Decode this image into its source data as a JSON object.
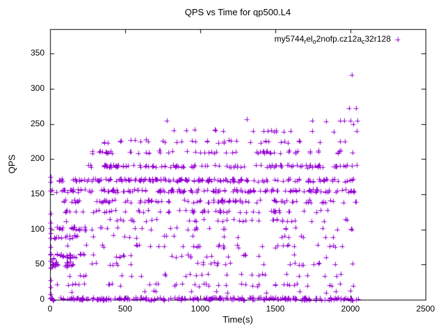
{
  "style": {
    "marker_color": "#9400d3",
    "axis_color": "#000000",
    "background": "#ffffff",
    "text_color": "#000000"
  },
  "legend": {
    "position": "top-right-inside",
    "entries": [
      {
        "label": "my5744_rel_o2nofp.cz12a_c32r128",
        "marker": "plus",
        "color": "#9400d3",
        "segments": [
          {
            "t": "my5744"
          },
          {
            "t": "r",
            "sub": true
          },
          {
            "t": "el"
          },
          {
            "t": "o",
            "sub": true
          },
          {
            "t": "2nofp.cz12a"
          },
          {
            "t": "c",
            "sub": true
          },
          {
            "t": "32r128"
          }
        ]
      }
    ]
  },
  "chart_data": {
    "type": "scatter",
    "title": "QPS vs Time for qp500.L4",
    "xlabel": "Time(s)",
    "ylabel": "QPS",
    "xlim": [
      0,
      2500
    ],
    "ylim": [
      0,
      385
    ],
    "xticks": [
      0,
      500,
      1000,
      1500,
      2000,
      2500
    ],
    "yticks": [
      0,
      50,
      100,
      150,
      200,
      250,
      300,
      350
    ],
    "grid": false,
    "note": "Dense scatter of QPS samples vs time; points lie on horizontal bands. Each band lists its QPS level y, time range x0..x1 (seconds) and approximate visible point count n, as read from the plot.",
    "series": [
      {
        "name": "my5744_rel_o2nofp.cz12a_c32r128",
        "marker": "plus",
        "color": "#9400d3",
        "bands": [
          {
            "y": 1,
            "x0": 0,
            "x1": 2050,
            "n": 240
          },
          {
            "y": 11,
            "x0": 20,
            "x1": 2030,
            "n": 12
          },
          {
            "y": 21,
            "x0": 20,
            "x1": 2040,
            "n": 40
          },
          {
            "y": 35,
            "x0": 25,
            "x1": 2040,
            "n": 26
          },
          {
            "y": 50,
            "x0": 5,
            "x1": 140,
            "n": 22,
            "j": 4
          },
          {
            "y": 51,
            "x0": 140,
            "x1": 2040,
            "n": 30
          },
          {
            "y": 62,
            "x0": 5,
            "x1": 230,
            "n": 26,
            "j": 4
          },
          {
            "y": 62,
            "x0": 230,
            "x1": 2040,
            "n": 22
          },
          {
            "y": 76,
            "x0": 10,
            "x1": 2040,
            "n": 34
          },
          {
            "y": 89,
            "x0": 10,
            "x1": 180,
            "n": 14,
            "j": 3
          },
          {
            "y": 90,
            "x0": 180,
            "x1": 2040,
            "n": 18
          },
          {
            "y": 101,
            "x0": 40,
            "x1": 240,
            "n": 18,
            "j": 3
          },
          {
            "y": 101,
            "x0": 240,
            "x1": 2040,
            "n": 24
          },
          {
            "y": 113,
            "x0": 80,
            "x1": 2040,
            "n": 38
          },
          {
            "y": 126,
            "x0": 80,
            "x1": 2040,
            "n": 60
          },
          {
            "y": 140,
            "x0": 90,
            "x1": 2050,
            "n": 92
          },
          {
            "y": 155,
            "x0": 5,
            "x1": 2050,
            "n": 155
          },
          {
            "y": 170,
            "x0": 55,
            "x1": 2050,
            "n": 160
          },
          {
            "y": 190,
            "x0": 250,
            "x1": 2050,
            "n": 112
          },
          {
            "y": 210,
            "x0": 270,
            "x1": 2050,
            "n": 60
          },
          {
            "y": 225,
            "x0": 300,
            "x1": 2050,
            "n": 36
          },
          {
            "y": 240,
            "x0": 700,
            "x1": 2050,
            "n": 17
          }
        ],
        "outliers": [
          [
            780,
            255
          ],
          [
            1310,
            257
          ],
          [
            1745,
            255
          ],
          [
            1840,
            254
          ],
          [
            1930,
            255
          ],
          [
            1960,
            255
          ],
          [
            2000,
            255
          ],
          [
            2045,
            255
          ],
          [
            1990,
            272
          ],
          [
            2035,
            272
          ],
          [
            2010,
            320
          ],
          [
            2020,
            250
          ],
          [
            2040,
            240
          ],
          [
            640,
            228
          ],
          [
            470,
            226
          ]
        ],
        "left_edge_column": {
          "x": 4,
          "ys": [
            8,
            18,
            28,
            45,
            55,
            65,
            75,
            88,
            95,
            102,
            110,
            122,
            155,
            168,
            175
          ]
        }
      }
    ]
  }
}
